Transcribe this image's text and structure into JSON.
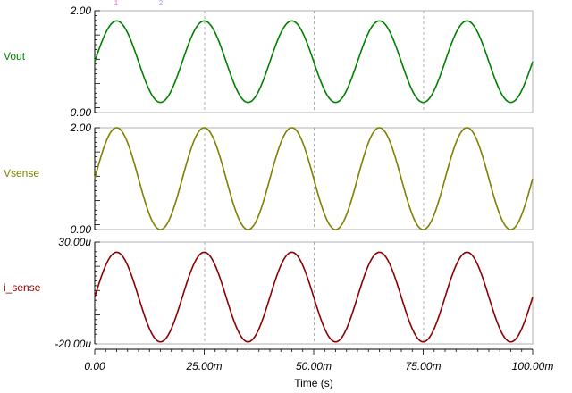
{
  "chart_data": {
    "type": "line",
    "x_axis": {
      "label": "Time (s)",
      "range": [
        0,
        100
      ],
      "unit": "ms",
      "ticks": [
        {
          "value": 0,
          "label": "0.00"
        },
        {
          "value": 25,
          "label": "25.00m"
        },
        {
          "value": 50,
          "label": "50.00m"
        },
        {
          "value": 75,
          "label": "75.00m"
        },
        {
          "value": 100,
          "label": "100.00m"
        }
      ],
      "gridlines_at": [
        25,
        50,
        75
      ]
    },
    "panels": [
      {
        "name": "Vout",
        "color": "#008000",
        "ylim": [
          0,
          2
        ],
        "ytick_labels": [
          "2.00",
          "0.00"
        ],
        "waveform": {
          "shape": "sine",
          "frequency_hz": 50,
          "offset": 1.0,
          "amplitude": 0.8,
          "phase_deg": 0
        }
      },
      {
        "name": "Vsense",
        "color": "#808000",
        "ylim": [
          0,
          2
        ],
        "ytick_labels": [
          "2.00",
          "0.00"
        ],
        "waveform": {
          "shape": "sine",
          "frequency_hz": 50,
          "offset": 1.0,
          "amplitude": 1.0,
          "phase_deg": 0
        }
      },
      {
        "name": "i_sense",
        "color": "#8B0000",
        "ylim": [
          -20,
          30
        ],
        "ytick_labels": [
          "30.00u",
          "-20.00u"
        ],
        "waveform": {
          "shape": "sine",
          "frequency_hz": 50,
          "offset": 3.0,
          "amplitude": 22.0,
          "phase_deg": 0
        }
      }
    ],
    "top_markers": [
      {
        "color": "#ff66cc",
        "label": "1"
      },
      {
        "color": "#9999ff",
        "label": "2"
      }
    ]
  }
}
